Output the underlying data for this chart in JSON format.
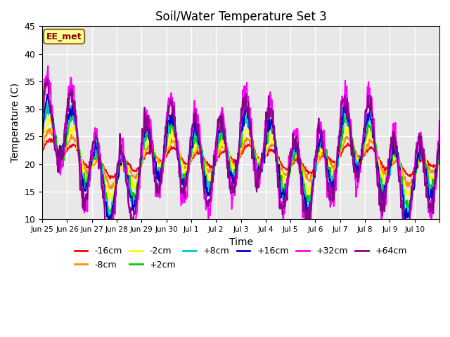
{
  "title": "Soil/Water Temperature Set 3",
  "xlabel": "Time",
  "ylabel": "Temperature (C)",
  "ylim": [
    10,
    45
  ],
  "annotation_text": "EE_met",
  "annotation_color": "#8B0000",
  "annotation_bg": "#FFFF99",
  "background_color": "#ffffff",
  "plot_bg_color": "#e8e8e8",
  "grid_color": "#ffffff",
  "series": [
    {
      "label": "-16cm",
      "color": "#FF0000",
      "lw": 1.5
    },
    {
      "label": "-8cm",
      "color": "#FF8C00",
      "lw": 1.5
    },
    {
      "label": "-2cm",
      "color": "#FFFF00",
      "lw": 1.5
    },
    {
      "label": "+2cm",
      "color": "#00CC00",
      "lw": 1.5
    },
    {
      "label": "+8cm",
      "color": "#00CCCC",
      "lw": 1.5
    },
    {
      "label": "+16cm",
      "color": "#0000CC",
      "lw": 1.5
    },
    {
      "label": "+32cm",
      "color": "#FF00FF",
      "lw": 1.5
    },
    {
      "label": "+64cm",
      "color": "#8B008B",
      "lw": 1.5
    }
  ],
  "xtick_positions": [
    0,
    1,
    2,
    3,
    4,
    5,
    6,
    7,
    8,
    9,
    10,
    11,
    12,
    13,
    14,
    15,
    16
  ],
  "xtick_labels": [
    "Jun 25",
    "Jun 26",
    "Jun 27",
    "Jun 28",
    "Jun 29",
    "Jun 30",
    "Jul 1",
    "Jul 2",
    "Jul 3",
    "Jul 4",
    "Jul 5",
    "Jul 6",
    "Jul 7",
    "Jul 8",
    "Jul 9",
    "Jul 10",
    ""
  ],
  "ytick_labels": [
    10,
    15,
    20,
    25,
    30,
    35,
    40,
    45
  ],
  "n_days": 16,
  "seed": 12345
}
